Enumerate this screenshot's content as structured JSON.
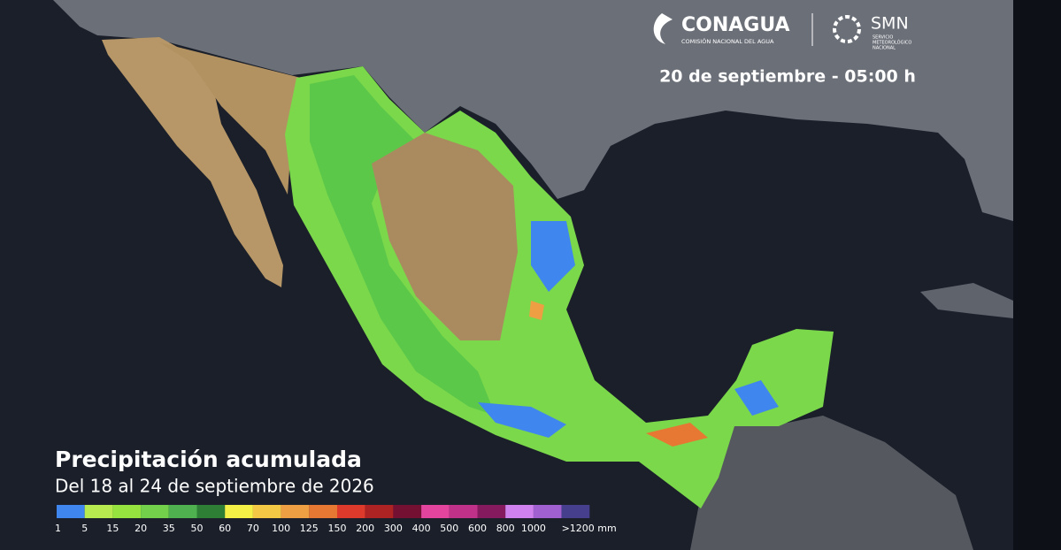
{
  "header": {
    "agency": "CONAGUA",
    "agency_subtitle": "COMISIÓN NACIONAL DEL AGUA",
    "service": "SMN",
    "service_subtitle": [
      "SERVICIO",
      "METEOROLÓGICO",
      "NACIONAL"
    ],
    "date": "20 de septiembre - 05:00 h"
  },
  "title": "Precipitación acumulada",
  "subtitle": "Del 18 al 24 de septiembre de 2026",
  "legend": {
    "items": [
      {
        "label": "1",
        "color": "#3f86ee"
      },
      {
        "label": "5",
        "color": "#b6ea4e"
      },
      {
        "label": "15",
        "color": "#96e23e"
      },
      {
        "label": "20",
        "color": "#72d04a"
      },
      {
        "label": "35",
        "color": "#4eb04e"
      },
      {
        "label": "50",
        "color": "#2f7e36"
      },
      {
        "label": "60",
        "color": "#f4f046"
      },
      {
        "label": "70",
        "color": "#f2c845"
      },
      {
        "label": "100",
        "color": "#ee9f44"
      },
      {
        "label": "125",
        "color": "#e67834"
      },
      {
        "label": "150",
        "color": "#de3a2c"
      },
      {
        "label": "200",
        "color": "#ad2222"
      },
      {
        "label": "300",
        "color": "#741032"
      },
      {
        "label": "400",
        "color": "#e2449e"
      },
      {
        "label": "500",
        "color": "#c0328a"
      },
      {
        "label": "600",
        "color": "#861a5e"
      },
      {
        "label": "800",
        "color": "#cf82ee"
      },
      {
        "label": "1000",
        "color": "#a060d0"
      },
      {
        "label": ">1200 mm",
        "color": "#453f8e"
      }
    ]
  }
}
